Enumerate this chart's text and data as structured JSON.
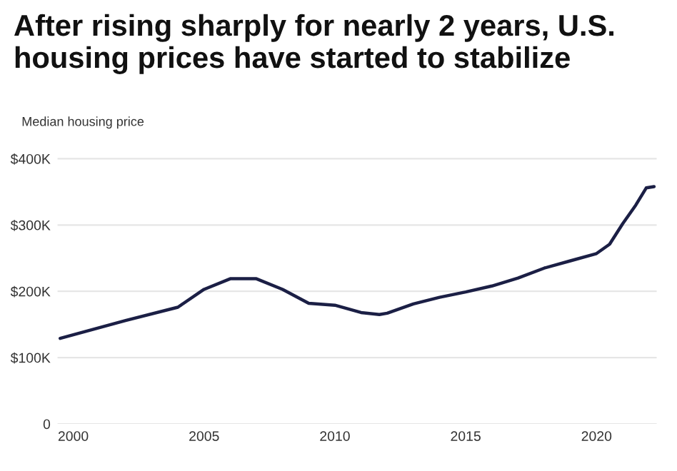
{
  "chart_data": {
    "type": "line",
    "title": "After rising sharply for nearly 2 years, U.S. housing prices have started to stabilize",
    "ylabel": "Median housing price",
    "x": [
      1999.5,
      2002,
      2004,
      2005,
      2006,
      2007,
      2008,
      2009,
      2010,
      2011,
      2011.7,
      2012,
      2013,
      2014,
      2015,
      2016,
      2017,
      2018,
      2019,
      2020,
      2020.5,
      2021,
      2021.5,
      2021.9,
      2022.2
    ],
    "series": [
      {
        "color": "#1b1f45",
        "values": [
          129,
          156,
          176,
          203,
          219,
          219,
          203,
          182,
          179,
          168,
          165,
          167,
          181,
          191,
          199,
          208,
          220,
          235,
          246,
          257,
          271,
          302,
          330,
          356,
          358
        ]
      }
    ],
    "xlim": [
      1999.4,
      2022.3
    ],
    "xticks": [
      2000,
      2005,
      2010,
      2015,
      2020
    ],
    "ylim": [
      0,
      405
    ],
    "yticks": [
      {
        "value": 0,
        "label": "0"
      },
      {
        "value": 100,
        "label": "$100K"
      },
      {
        "value": 200,
        "label": "$200K"
      },
      {
        "value": 300,
        "label": "$300K"
      },
      {
        "value": 400,
        "label": "$400K"
      }
    ],
    "grid": "y",
    "line_style": "solid",
    "marker": "none"
  }
}
